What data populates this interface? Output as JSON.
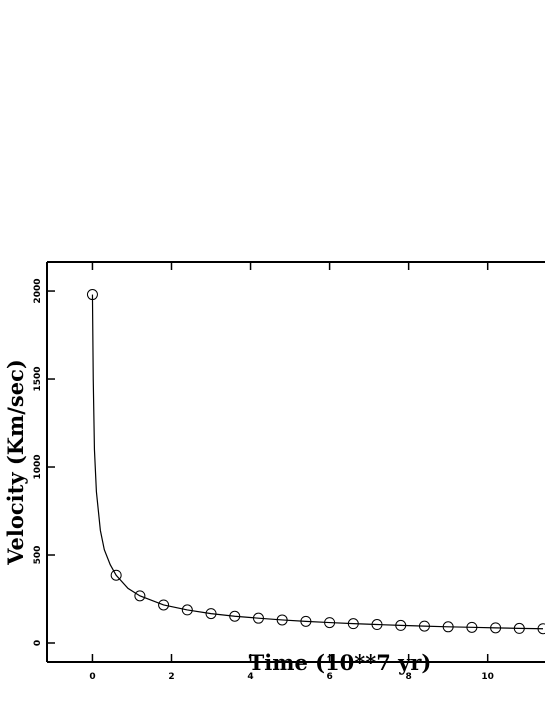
{
  "chart_data": {
    "type": "line",
    "x_label": "Time (10**7 yr)",
    "y_label": "Velocity (Km/sec)",
    "xlim": [
      -1.15,
      11.45
    ],
    "ylim": [
      -108,
      2165
    ],
    "xticks": [
      0,
      2,
      4,
      6,
      8,
      10
    ],
    "yticks": [
      0,
      500,
      1000,
      1500,
      2000
    ],
    "series": [
      {
        "color": "#000000",
        "marker": "circle",
        "x": [
          0,
          0.6,
          1.2,
          1.8,
          2.4,
          3.0,
          3.6,
          4.2,
          4.8,
          5.4,
          6.0,
          6.6,
          7.2,
          7.8,
          8.4,
          9.0,
          9.6,
          10.2,
          10.8,
          11.4
        ],
        "values": [
          1980,
          385,
          268,
          216,
          188,
          167,
          152,
          141,
          131,
          123,
          116,
          110,
          105,
          100,
          96,
          92,
          89,
          86,
          83,
          81
        ]
      },
      {
        "color": "#000000",
        "marker": "none",
        "x": [
          0,
          0.02,
          0.05,
          0.1,
          0.2,
          0.3,
          0.45,
          0.6,
          0.9,
          1.2,
          1.8,
          2.4,
          3.0,
          3.6,
          4.2,
          4.8,
          5.4,
          6.0,
          6.6,
          7.2,
          7.8,
          8.4,
          9.0,
          9.6,
          10.2,
          10.8,
          11.4
        ],
        "values": [
          1980,
          1500,
          1100,
          860,
          640,
          530,
          445,
          385,
          310,
          268,
          216,
          188,
          167,
          152,
          141,
          131,
          123,
          116,
          110,
          105,
          100,
          96,
          92,
          89,
          86,
          83,
          81
        ]
      }
    ]
  }
}
